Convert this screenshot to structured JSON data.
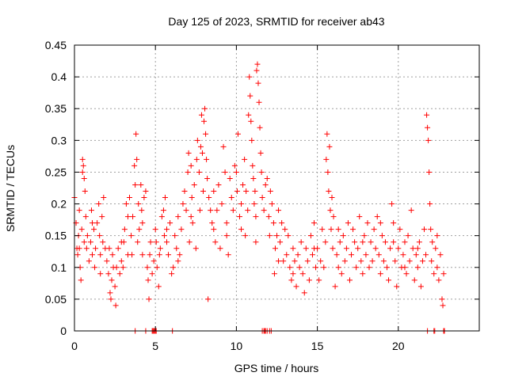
{
  "chart_data": {
    "type": "scatter",
    "title": "Day 125 of 2023, SRMTID for receiver ab43",
    "xlabel": "GPS time / hours",
    "ylabel": "SRMTID / TECUs",
    "xlim": [
      0,
      25
    ],
    "ylim": [
      0,
      0.45
    ],
    "xticks": [
      0,
      5,
      10,
      15,
      20
    ],
    "yticks": [
      0,
      0.05,
      0.1,
      0.15,
      0.2,
      0.25,
      0.3,
      0.35,
      0.4,
      0.45
    ],
    "xtick_labels": [
      "0",
      "5",
      "10",
      "15",
      "20"
    ],
    "ytick_labels": [
      "0",
      "0.05",
      "0.1",
      "0.15",
      "0.2",
      "0.25",
      "0.3",
      "0.35",
      "0.4",
      "0.45"
    ],
    "grid": true,
    "marker": "+",
    "color": "#ff0000",
    "series": [
      {
        "name": "SRMTID",
        "points": [
          [
            0.0,
            0.21
          ],
          [
            0.1,
            0.17
          ],
          [
            0.15,
            0.13
          ],
          [
            0.2,
            0.12
          ],
          [
            0.25,
            0.15
          ],
          [
            0.3,
            0.19
          ],
          [
            0.35,
            0.1
          ],
          [
            0.4,
            0.08
          ],
          [
            0.45,
            0.16
          ],
          [
            0.5,
            0.27
          ],
          [
            0.5,
            0.25
          ],
          [
            0.55,
            0.26
          ],
          [
            0.6,
            0.24
          ],
          [
            0.6,
            0.14
          ],
          [
            0.65,
            0.22
          ],
          [
            0.7,
            0.18
          ],
          [
            0.75,
            0.13
          ],
          [
            0.8,
            0.15
          ],
          [
            0.9,
            0.11
          ],
          [
            1.0,
            0.14
          ],
          [
            1.05,
            0.19
          ],
          [
            1.1,
            0.12
          ],
          [
            1.2,
            0.16
          ],
          [
            1.25,
            0.1
          ],
          [
            1.3,
            0.13
          ],
          [
            1.4,
            0.17
          ],
          [
            1.5,
            0.2
          ],
          [
            1.55,
            0.15
          ],
          [
            1.6,
            0.12
          ],
          [
            1.7,
            0.18
          ],
          [
            1.75,
            0.14
          ],
          [
            1.8,
            0.21
          ],
          [
            1.9,
            0.13
          ],
          [
            2.0,
            0.11
          ],
          [
            2.1,
            0.09
          ],
          [
            2.15,
            0.13
          ],
          [
            2.2,
            0.06
          ],
          [
            2.25,
            0.05
          ],
          [
            2.3,
            0.08
          ],
          [
            2.35,
            0.12
          ],
          [
            2.4,
            0.1
          ],
          [
            2.5,
            0.07
          ],
          [
            2.55,
            0.04
          ],
          [
            2.6,
            0.1
          ],
          [
            2.7,
            0.13
          ],
          [
            2.8,
            0.09
          ],
          [
            2.9,
            0.11
          ],
          [
            3.0,
            0.1
          ],
          [
            3.05,
            0.14
          ],
          [
            3.1,
            0.16
          ],
          [
            3.2,
            0.2
          ],
          [
            3.3,
            0.18
          ],
          [
            3.4,
            0.21
          ],
          [
            3.5,
            0.15
          ],
          [
            3.55,
            0.12
          ],
          [
            3.6,
            0.18
          ],
          [
            3.7,
            0.26
          ],
          [
            3.75,
            0.23
          ],
          [
            3.8,
            0.31
          ],
          [
            3.85,
            0.27
          ],
          [
            3.9,
            0.14
          ],
          [
            3.95,
            0.2
          ],
          [
            4.0,
            0.16
          ],
          [
            4.1,
            0.23
          ],
          [
            4.15,
            0.19
          ],
          [
            4.2,
            0.12
          ],
          [
            4.3,
            0.21
          ],
          [
            4.4,
            0.22
          ],
          [
            4.5,
            0.1
          ],
          [
            4.55,
            0.08
          ],
          [
            4.6,
            0.05
          ],
          [
            4.65,
            0.12
          ],
          [
            4.7,
            0.14
          ],
          [
            4.8,
            0.09
          ],
          [
            4.9,
            0.11
          ],
          [
            5.0,
            0.16
          ],
          [
            5.05,
            0.14
          ],
          [
            5.1,
            0.1
          ],
          [
            5.2,
            0.07
          ],
          [
            5.25,
            0.12
          ],
          [
            5.3,
            0.13
          ],
          [
            5.4,
            0.18
          ],
          [
            5.5,
            0.19
          ],
          [
            5.55,
            0.15
          ],
          [
            5.6,
            0.21
          ],
          [
            5.7,
            0.14
          ],
          [
            5.8,
            0.12
          ],
          [
            5.9,
            0.17
          ],
          [
            6.0,
            0.09
          ],
          [
            6.1,
            0.1
          ],
          [
            6.2,
            0.15
          ],
          [
            6.3,
            0.13
          ],
          [
            6.4,
            0.18
          ],
          [
            6.5,
            0.12
          ],
          [
            6.6,
            0.16
          ],
          [
            6.7,
            0.2
          ],
          [
            6.8,
            0.22
          ],
          [
            6.9,
            0.19
          ],
          [
            7.0,
            0.25
          ],
          [
            7.05,
            0.28
          ],
          [
            7.1,
            0.14
          ],
          [
            7.2,
            0.26
          ],
          [
            7.25,
            0.21
          ],
          [
            7.3,
            0.17
          ],
          [
            7.4,
            0.23
          ],
          [
            7.5,
            0.13
          ],
          [
            7.55,
            0.27
          ],
          [
            7.6,
            0.3
          ],
          [
            7.7,
            0.25
          ],
          [
            7.75,
            0.19
          ],
          [
            7.8,
            0.29
          ],
          [
            7.85,
            0.34
          ],
          [
            7.9,
            0.28
          ],
          [
            7.95,
            0.22
          ],
          [
            8.0,
            0.33
          ],
          [
            8.05,
            0.35
          ],
          [
            8.1,
            0.31
          ],
          [
            8.15,
            0.27
          ],
          [
            8.2,
            0.24
          ],
          [
            8.25,
            0.05
          ],
          [
            8.3,
            0.21
          ],
          [
            8.4,
            0.19
          ],
          [
            8.5,
            0.17
          ],
          [
            8.6,
            0.16
          ],
          [
            8.7,
            0.14
          ],
          [
            8.8,
            0.19
          ],
          [
            8.9,
            0.23
          ],
          [
            9.0,
            0.13
          ],
          [
            9.1,
            0.2
          ],
          [
            9.2,
            0.29
          ],
          [
            9.3,
            0.25
          ],
          [
            9.4,
            0.17
          ],
          [
            9.5,
            0.12
          ],
          [
            9.6,
            0.24
          ],
          [
            9.7,
            0.21
          ],
          [
            9.8,
            0.19
          ],
          [
            9.9,
            0.26
          ],
          [
            10.0,
            0.25
          ],
          [
            10.05,
            0.22
          ],
          [
            10.1,
            0.31
          ],
          [
            10.2,
            0.18
          ],
          [
            10.3,
            0.2
          ],
          [
            10.4,
            0.23
          ],
          [
            10.5,
            0.27
          ],
          [
            10.55,
            0.15
          ],
          [
            10.6,
            0.22
          ],
          [
            10.7,
            0.19
          ],
          [
            10.75,
            0.34
          ],
          [
            10.8,
            0.4
          ],
          [
            10.85,
            0.37
          ],
          [
            10.9,
            0.33
          ],
          [
            10.95,
            0.3
          ],
          [
            11.0,
            0.26
          ],
          [
            11.05,
            0.24
          ],
          [
            11.1,
            0.2
          ],
          [
            11.15,
            0.22
          ],
          [
            11.2,
            0.18
          ],
          [
            11.25,
            0.41
          ],
          [
            11.3,
            0.42
          ],
          [
            11.35,
            0.39
          ],
          [
            11.4,
            0.36
          ],
          [
            11.45,
            0.32
          ],
          [
            11.5,
            0.28
          ],
          [
            11.55,
            0.25
          ],
          [
            11.6,
            0.21
          ],
          [
            11.7,
            0.19
          ],
          [
            11.8,
            0.23
          ],
          [
            11.9,
            0.24
          ],
          [
            12.0,
            0.18
          ],
          [
            12.05,
            0.15
          ],
          [
            12.1,
            0.22
          ],
          [
            12.2,
            0.2
          ],
          [
            12.3,
            0.17
          ],
          [
            12.35,
            0.09
          ],
          [
            12.4,
            0.13
          ],
          [
            12.5,
            0.15
          ],
          [
            12.6,
            0.19
          ],
          [
            12.7,
            0.14
          ],
          [
            12.8,
            0.17
          ],
          [
            12.9,
            0.11
          ],
          [
            13.0,
            0.16
          ],
          [
            13.1,
            0.12
          ],
          [
            13.2,
            0.15
          ],
          [
            13.3,
            0.1
          ],
          [
            13.4,
            0.08
          ],
          [
            13.5,
            0.13
          ],
          [
            13.6,
            0.11
          ],
          [
            13.7,
            0.07
          ],
          [
            13.8,
            0.12
          ],
          [
            13.9,
            0.1
          ],
          [
            14.0,
            0.14
          ],
          [
            14.1,
            0.09
          ],
          [
            14.2,
            0.06
          ],
          [
            14.3,
            0.13
          ],
          [
            14.4,
            0.11
          ],
          [
            14.5,
            0.08
          ],
          [
            14.6,
            0.15
          ],
          [
            14.7,
            0.12
          ],
          [
            14.8,
            0.17
          ],
          [
            14.9,
            0.1
          ],
          [
            15.0,
            0.13
          ],
          [
            15.1,
            0.08
          ],
          [
            15.2,
            0.11
          ],
          [
            15.3,
            0.16
          ],
          [
            15.4,
            0.1
          ],
          [
            15.5,
            0.14
          ],
          [
            15.55,
            0.27
          ],
          [
            15.6,
            0.31
          ],
          [
            15.65,
            0.25
          ],
          [
            15.7,
            0.22
          ],
          [
            15.75,
            0.29
          ],
          [
            15.8,
            0.19
          ],
          [
            15.85,
            0.16
          ],
          [
            15.9,
            0.21
          ],
          [
            15.95,
            0.13
          ],
          [
            16.0,
            0.18
          ],
          [
            16.1,
            0.07
          ],
          [
            16.2,
            0.12
          ],
          [
            16.3,
            0.1
          ],
          [
            16.4,
            0.14
          ],
          [
            16.5,
            0.09
          ],
          [
            16.6,
            0.15
          ],
          [
            16.7,
            0.11
          ],
          [
            16.8,
            0.13
          ],
          [
            16.9,
            0.17
          ],
          [
            17.0,
            0.08
          ],
          [
            17.1,
            0.12
          ],
          [
            17.2,
            0.16
          ],
          [
            17.3,
            0.14
          ],
          [
            17.4,
            0.1
          ],
          [
            17.5,
            0.13
          ],
          [
            17.6,
            0.18
          ],
          [
            17.7,
            0.11
          ],
          [
            17.8,
            0.09
          ],
          [
            17.9,
            0.15
          ],
          [
            18.0,
            0.12
          ],
          [
            18.1,
            0.17
          ],
          [
            18.2,
            0.1
          ],
          [
            18.3,
            0.14
          ],
          [
            18.4,
            0.11
          ],
          [
            18.5,
            0.16
          ],
          [
            18.6,
            0.13
          ],
          [
            18.7,
            0.18
          ],
          [
            18.8,
            0.12
          ],
          [
            18.9,
            0.09
          ],
          [
            19.0,
            0.15
          ],
          [
            19.1,
            0.11
          ],
          [
            19.2,
            0.14
          ],
          [
            19.3,
            0.1
          ],
          [
            19.4,
            0.08
          ],
          [
            19.5,
            0.13
          ],
          [
            19.6,
            0.2
          ],
          [
            19.7,
            0.17
          ],
          [
            19.8,
            0.11
          ],
          [
            19.9,
            0.07
          ],
          [
            20.0,
            0.13
          ],
          [
            20.1,
            0.16
          ],
          [
            20.2,
            0.1
          ],
          [
            20.3,
            0.12
          ],
          [
            20.4,
            0.14
          ],
          [
            20.5,
            0.09
          ],
          [
            20.6,
            0.15
          ],
          [
            20.7,
            0.11
          ],
          [
            20.8,
            0.19
          ],
          [
            20.9,
            0.13
          ],
          [
            21.0,
            0.08
          ],
          [
            21.1,
            0.12
          ],
          [
            21.2,
            0.1
          ],
          [
            21.3,
            0.14
          ],
          [
            21.4,
            0.07
          ],
          [
            21.5,
            0.11
          ],
          [
            21.6,
            0.16
          ],
          [
            21.7,
            0.12
          ],
          [
            21.75,
            0.34
          ],
          [
            21.8,
            0.32
          ],
          [
            21.85,
            0.3
          ],
          [
            21.9,
            0.25
          ],
          [
            21.95,
            0.2
          ],
          [
            22.0,
            0.16
          ],
          [
            22.05,
            0.11
          ],
          [
            22.1,
            0.14
          ],
          [
            22.2,
            0.09
          ],
          [
            22.3,
            0.13
          ],
          [
            22.4,
            0.1
          ],
          [
            22.5,
            0.08
          ],
          [
            22.6,
            0.12
          ],
          [
            22.7,
            0.05
          ],
          [
            22.75,
            0.04
          ],
          [
            22.8,
            0.09
          ],
          [
            0.3,
            0.13
          ],
          [
            1.1,
            0.17
          ],
          [
            1.6,
            0.09
          ],
          [
            2.9,
            0.14
          ],
          [
            3.3,
            0.12
          ],
          [
            4.2,
            0.17
          ],
          [
            5.7,
            0.16
          ],
          [
            6.4,
            0.11
          ],
          [
            7.2,
            0.18
          ],
          [
            8.6,
            0.22
          ],
          [
            9.4,
            0.15
          ],
          [
            10.3,
            0.16
          ],
          [
            11.2,
            0.14
          ],
          [
            12.6,
            0.11
          ],
          [
            13.5,
            0.09
          ],
          [
            14.8,
            0.13
          ],
          [
            16.3,
            0.16
          ],
          [
            17.8,
            0.14
          ],
          [
            18.9,
            0.17
          ],
          [
            19.7,
            0.14
          ],
          [
            20.4,
            0.1
          ],
          [
            21.2,
            0.13
          ],
          [
            22.4,
            0.15
          ]
        ]
      }
    ],
    "zero_points_x": [
      3.75,
      4.4,
      4.8,
      4.85,
      4.9,
      4.95,
      5.0,
      5.05,
      6.05,
      11.6,
      11.7,
      11.75,
      11.8,
      11.9,
      12.05,
      12.15,
      21.8,
      22.2,
      22.25,
      22.8,
      22.85
    ]
  }
}
